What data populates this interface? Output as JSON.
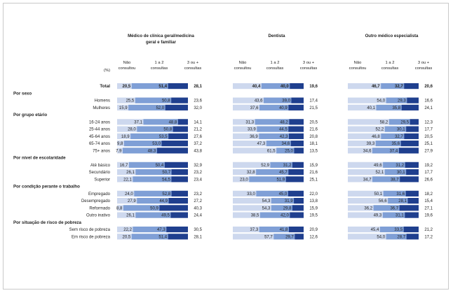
{
  "chart_data": {
    "type": "bar",
    "unit_label": "(%)",
    "groups": [
      {
        "name": "Médico de clínica geral/medicina geral e familiar",
        "title_lines": [
          "Médico de clínica geral/medicina",
          "geral e familiar"
        ]
      },
      {
        "name": "Dentista",
        "title_lines": [
          "Dentista"
        ]
      },
      {
        "name": "Outro médico especialista",
        "title_lines": [
          "Outro médico especialista"
        ]
      }
    ],
    "series": [
      {
        "name": "Não consultou",
        "label_lines": [
          "Não",
          "consultou"
        ],
        "color": "#cdd8ee"
      },
      {
        "name": "1 a 2 consultas",
        "label_lines": [
          "1 a 2",
          "consultas"
        ],
        "color": "#7f9fd6"
      },
      {
        "name": "3 ou + consultas",
        "label_lines": [
          "3 ou +",
          "consultas"
        ],
        "color": "#1f3f8e"
      }
    ],
    "rows": [
      {
        "kind": "row",
        "label": "Total",
        "bold": true,
        "values": [
          [
            20.5,
            51.4,
            28.1
          ],
          [
            40.4,
            40.0,
            19.6
          ],
          [
            46.7,
            32.7,
            20.6
          ]
        ]
      },
      {
        "kind": "section",
        "label": "Por sexo"
      },
      {
        "kind": "row",
        "label": "Homens",
        "values": [
          [
            25.5,
            50.8,
            23.6
          ],
          [
            43.6,
            39.0,
            17.4
          ],
          [
            54.0,
            29.3,
            16.6
          ]
        ]
      },
      {
        "kind": "row",
        "label": "Mulheres",
        "values": [
          [
            15.9,
            52.0,
            32.0
          ],
          [
            37.6,
            40.9,
            21.5
          ],
          [
            40.1,
            35.8,
            24.1
          ]
        ]
      },
      {
        "kind": "section",
        "label": "Por grupo etário"
      },
      {
        "kind": "row",
        "label": "16-24 anos",
        "values": [
          [
            37.1,
            48.8,
            14.1
          ],
          [
            31.3,
            48.2,
            20.5
          ],
          [
            58.2,
            29.5,
            12.3
          ]
        ]
      },
      {
        "kind": "row",
        "label": "25-44 anos",
        "values": [
          [
            28.0,
            50.8,
            21.2
          ],
          [
            33.9,
            44.5,
            21.6
          ],
          [
            52.2,
            30.1,
            17.7
          ]
        ]
      },
      {
        "kind": "row",
        "label": "45-64 anos",
        "values": [
          [
            18.9,
            53.5,
            27.6
          ],
          [
            36.9,
            42.3,
            20.8
          ],
          [
            46.8,
            32.7,
            20.5
          ]
        ]
      },
      {
        "kind": "row",
        "label": "65-74 anos",
        "values": [
          [
            9.8,
            53.0,
            37.2
          ],
          [
            47.3,
            34.6,
            18.1
          ],
          [
            39.3,
            35.6,
            25.1
          ]
        ]
      },
      {
        "kind": "row",
        "label": "75+ anos",
        "values": [
          [
            7.9,
            48.3,
            43.8
          ],
          [
            61.5,
            25.0,
            13.5
          ],
          [
            34.6,
            37.4,
            27.9
          ]
        ]
      },
      {
        "kind": "section",
        "label": "Por nível de escolaridade"
      },
      {
        "kind": "row",
        "label": "Até básico",
        "values": [
          [
            16.7,
            50.4,
            32.9
          ],
          [
            52.9,
            31.2,
            15.9
          ],
          [
            49.6,
            31.2,
            19.2
          ]
        ]
      },
      {
        "kind": "row",
        "label": "Secundário",
        "values": [
          [
            26.1,
            50.7,
            23.2
          ],
          [
            32.8,
            45.7,
            21.6
          ],
          [
            52.1,
            30.1,
            17.7
          ]
        ]
      },
      {
        "kind": "row",
        "label": "Superior",
        "values": [
          [
            22.1,
            54.5,
            23.4
          ],
          [
            23.0,
            51.9,
            25.1
          ],
          [
            34.7,
            38.7,
            26.6
          ]
        ]
      },
      {
        "kind": "section",
        "label": "Por condição perante o trabalho"
      },
      {
        "kind": "row",
        "label": "Empregado",
        "values": [
          [
            24.0,
            52.8,
            23.2
          ],
          [
            33.0,
            45.0,
            22.0
          ],
          [
            50.1,
            31.6,
            18.2
          ]
        ]
      },
      {
        "kind": "row",
        "label": "Desempregado",
        "values": [
          [
            27.9,
            44.9,
            27.2
          ],
          [
            54.3,
            31.9,
            13.8
          ],
          [
            56.6,
            28.1,
            15.4
          ]
        ]
      },
      {
        "kind": "row",
        "label": "Reformado",
        "values": [
          [
            8.8,
            50.9,
            40.3
          ],
          [
            54.3,
            29.8,
            15.9
          ],
          [
            36.2,
            36.7,
            27.1
          ]
        ]
      },
      {
        "kind": "row",
        "label": "Outro inativo",
        "values": [
          [
            26.1,
            49.5,
            24.4
          ],
          [
            38.5,
            42.0,
            19.5
          ],
          [
            49.3,
            31.1,
            19.6
          ]
        ]
      },
      {
        "kind": "section",
        "label": "Por situação de risco de pobreza"
      },
      {
        "kind": "row",
        "label": "Sem risco de pobreza",
        "values": [
          [
            22.2,
            47.3,
            30.5
          ],
          [
            37.3,
            41.8,
            20.9
          ],
          [
            45.4,
            33.5,
            21.2
          ]
        ]
      },
      {
        "kind": "row",
        "label": "Em risco de pobreza",
        "values": [
          [
            20.5,
            51.4,
            28.1
          ],
          [
            57.7,
            29.7,
            12.6
          ],
          [
            54.0,
            28.7,
            17.2
          ]
        ]
      }
    ]
  }
}
